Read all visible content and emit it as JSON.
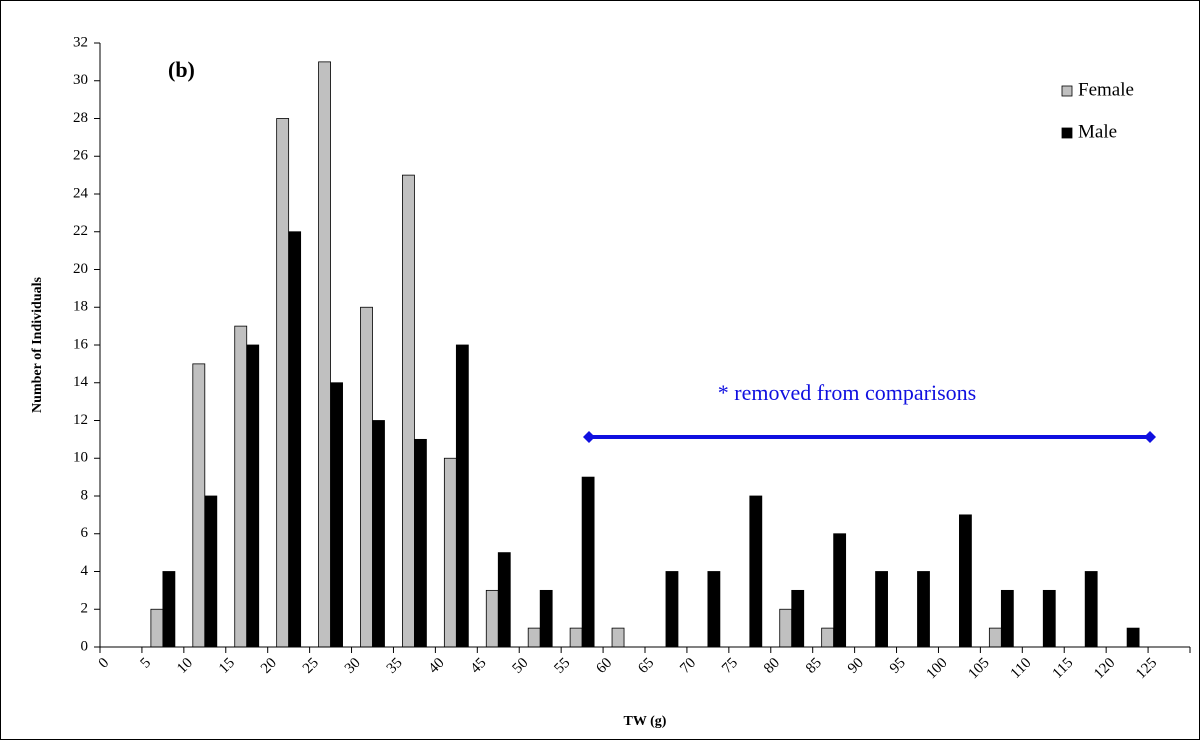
{
  "chart_data": {
    "type": "bar",
    "annotation_label": "(b)",
    "annotation": "* removed from comparisons",
    "x_label": "TW (g)",
    "y_label": "Number of Individuals",
    "categories": [
      "0",
      "5",
      "10",
      "15",
      "20",
      "25",
      "30",
      "35",
      "40",
      "45",
      "50",
      "55",
      "60",
      "65",
      "70",
      "75",
      "80",
      "85",
      "90",
      "95",
      "100",
      "105",
      "110",
      "115",
      "120",
      "125"
    ],
    "series": [
      {
        "name": "Female",
        "color": "#c0c0c0",
        "values": [
          0,
          2,
          15,
          17,
          28,
          31,
          18,
          25,
          10,
          3,
          1,
          1,
          1,
          0,
          0,
          0,
          2,
          1,
          0,
          0,
          0,
          1,
          0,
          0,
          0,
          0
        ]
      },
      {
        "name": "Male",
        "color": "#000000",
        "values": [
          0,
          4,
          8,
          16,
          22,
          14,
          12,
          11,
          16,
          5,
          3,
          9,
          0,
          4,
          4,
          8,
          3,
          6,
          4,
          4,
          7,
          3,
          3,
          4,
          1,
          0
        ]
      }
    ],
    "ylim": [
      0,
      32
    ],
    "yticks": [
      0,
      2,
      4,
      6,
      8,
      10,
      12,
      14,
      16,
      18,
      20,
      22,
      24,
      26,
      28,
      30,
      32
    ],
    "legend": "top-right"
  }
}
